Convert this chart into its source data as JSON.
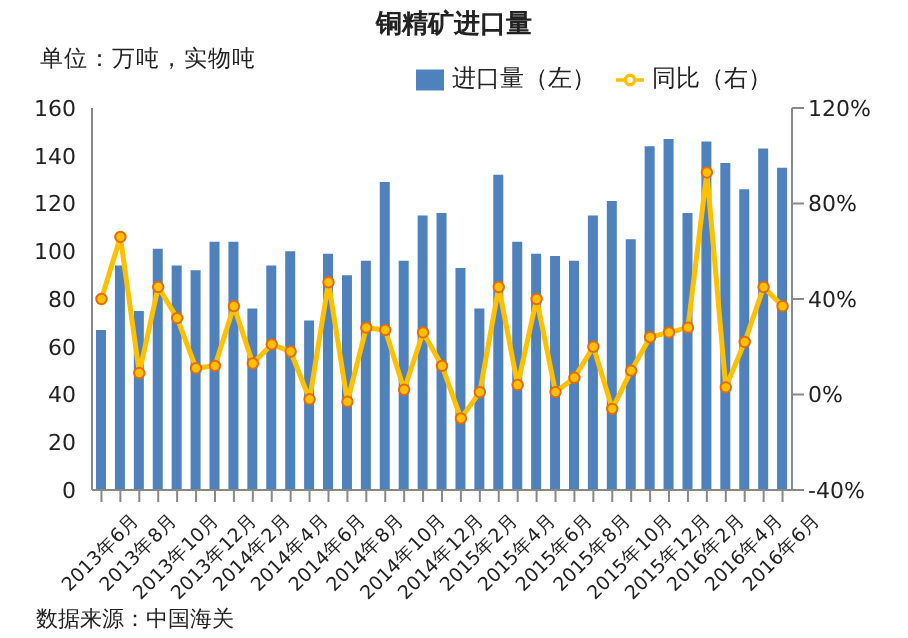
{
  "chart_data": {
    "type": "bar",
    "title": "铜精矿进口量",
    "subtitle": "单位：万吨，实物吨",
    "categories": [
      "2013年6月",
      null,
      "2013年8月",
      null,
      "2013年10月",
      null,
      "2013年12月",
      null,
      "2014年2月",
      null,
      "2014年4月",
      null,
      "2014年6月",
      null,
      "2014年8月",
      null,
      "2014年10月",
      null,
      "2014年12月",
      null,
      "2015年2月",
      null,
      "2015年4月",
      null,
      "2015年6月",
      null,
      "2015年8月",
      null,
      "2015年10月",
      null,
      "2015年12月",
      null,
      "2016年2月",
      null,
      "2016年4月",
      null,
      "2016年6月"
    ],
    "series": [
      {
        "name": "进口量（左）",
        "color": "#4f81bd",
        "values": [
          67,
          94,
          75,
          101,
          94,
          92,
          104,
          104,
          76,
          94,
          100,
          71,
          99,
          90,
          96,
          129,
          96,
          115,
          116,
          93,
          76,
          132,
          104,
          99,
          98,
          96,
          115,
          121,
          105,
          144,
          147,
          116,
          146,
          137,
          126,
          143,
          135
        ]
      },
      {
        "name": "同比（右）",
        "type": "line",
        "axis": "y2",
        "color": "#ffc000",
        "values": [
          40,
          66,
          9,
          45,
          32,
          11,
          12,
          37,
          13,
          21,
          18,
          -2,
          47,
          -3,
          28,
          27,
          2,
          26,
          12,
          -10,
          1,
          45,
          4,
          40,
          1,
          7,
          20,
          -6,
          10,
          24,
          26,
          28,
          93,
          3,
          22,
          45,
          37
        ]
      }
    ],
    "ylim": [
      0,
      160
    ],
    "yticks": [
      0,
      20,
      40,
      60,
      80,
      100,
      120,
      140,
      160
    ],
    "y2lim": [
      -40,
      120
    ],
    "y2ticks": [
      {
        "value": -40,
        "label": "-40%"
      },
      {
        "value": 0,
        "label": "0%"
      },
      {
        "value": 40,
        "label": "40%"
      },
      {
        "value": 80,
        "label": "80%"
      },
      {
        "value": 120,
        "label": "120%"
      }
    ],
    "annotations": [
      "数据来源：中国海关"
    ],
    "legend": "top right",
    "grid": false,
    "marker": "circle",
    "line_style": "solid"
  }
}
